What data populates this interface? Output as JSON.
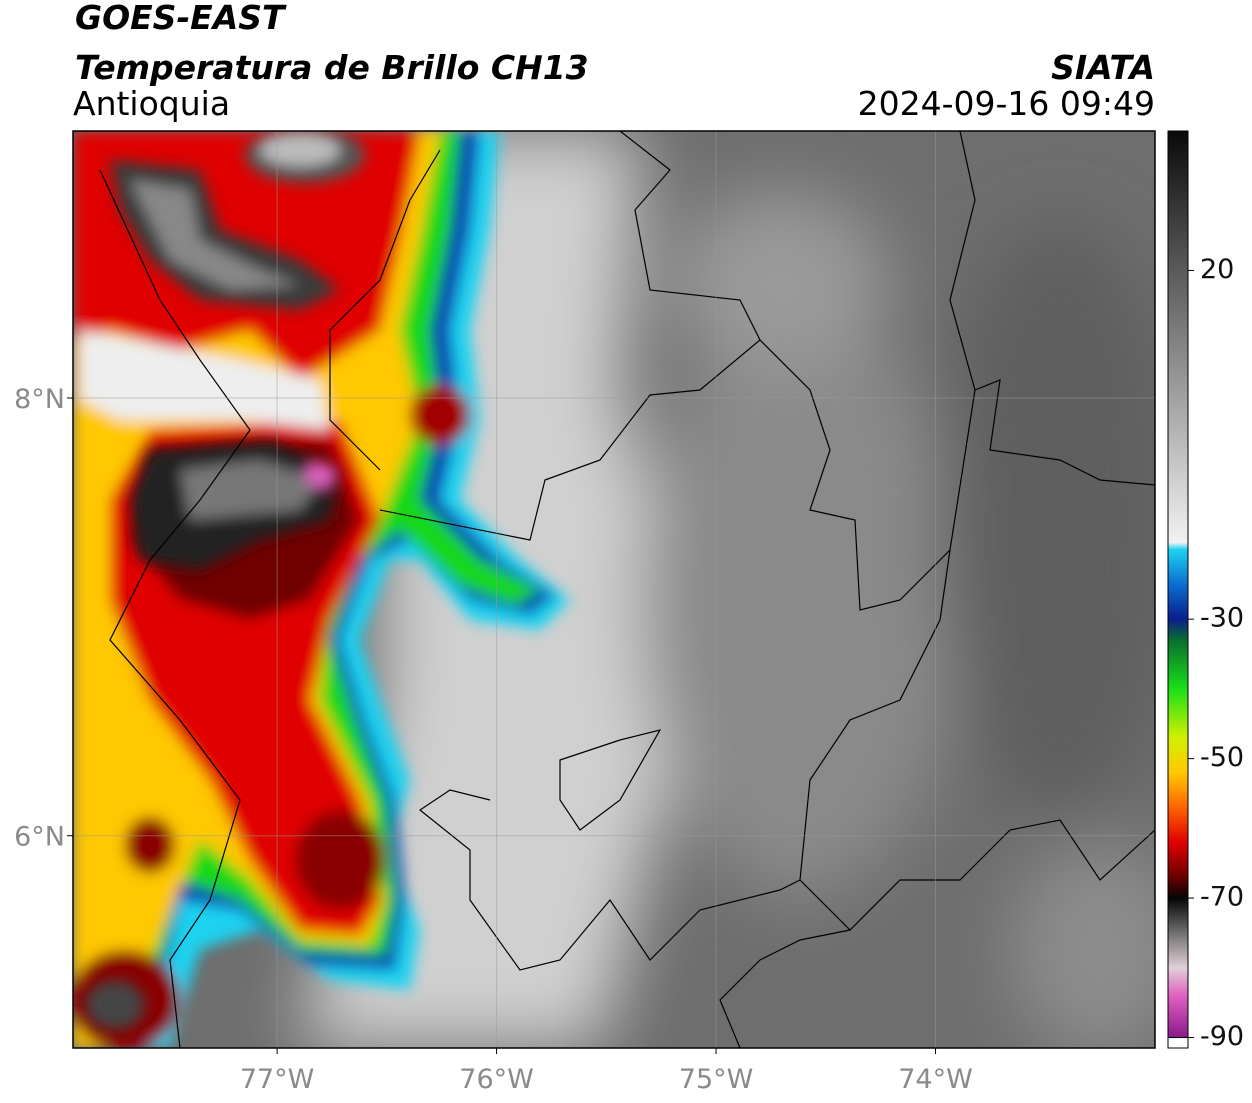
{
  "header": {
    "satellite": "GOES-EAST",
    "product": "Temperatura de Brillo CH13",
    "region": "Antioquia",
    "organization": "SIATA",
    "datetime": "2024-09-16 09:49"
  },
  "map": {
    "lonlim": [
      -77.93,
      -73.0
    ],
    "latlim": [
      5.03,
      9.22
    ],
    "grid": true,
    "lon_ticks": [
      {
        "value": -77,
        "label": "77°W"
      },
      {
        "value": -76,
        "label": "76°W"
      },
      {
        "value": -75,
        "label": "75°W"
      },
      {
        "value": -74,
        "label": "74°W"
      }
    ],
    "lat_ticks": [
      {
        "value": 8,
        "label": "8°N"
      },
      {
        "value": 6,
        "label": "6°N"
      }
    ]
  },
  "colorbar": {
    "lim": [
      -91.5,
      40
    ],
    "ticks": [
      20,
      -30,
      -50,
      -70,
      -90
    ],
    "stops": [
      {
        "value": 40,
        "color": "#0a0a0a"
      },
      {
        "value": 20,
        "color": "#5a5a5a"
      },
      {
        "value": 0,
        "color": "#a8a8a8"
      },
      {
        "value": -19,
        "color": "#f2f2f2"
      },
      {
        "value": -20,
        "color": "#1ed2f0"
      },
      {
        "value": -25,
        "color": "#0a6fd0"
      },
      {
        "value": -30,
        "color": "#0a1e8c"
      },
      {
        "value": -33,
        "color": "#0a6e2e"
      },
      {
        "value": -40,
        "color": "#18e018"
      },
      {
        "value": -47,
        "color": "#d2f000"
      },
      {
        "value": -52,
        "color": "#ffc800"
      },
      {
        "value": -57,
        "color": "#ff6400"
      },
      {
        "value": -62,
        "color": "#e00000"
      },
      {
        "value": -67,
        "color": "#6a0000"
      },
      {
        "value": -70,
        "color": "#050505"
      },
      {
        "value": -75,
        "color": "#707070"
      },
      {
        "value": -80,
        "color": "#e0d0d8"
      },
      {
        "value": -84,
        "color": "#e060c0"
      },
      {
        "value": -90,
        "color": "#8a1a8a"
      }
    ]
  }
}
